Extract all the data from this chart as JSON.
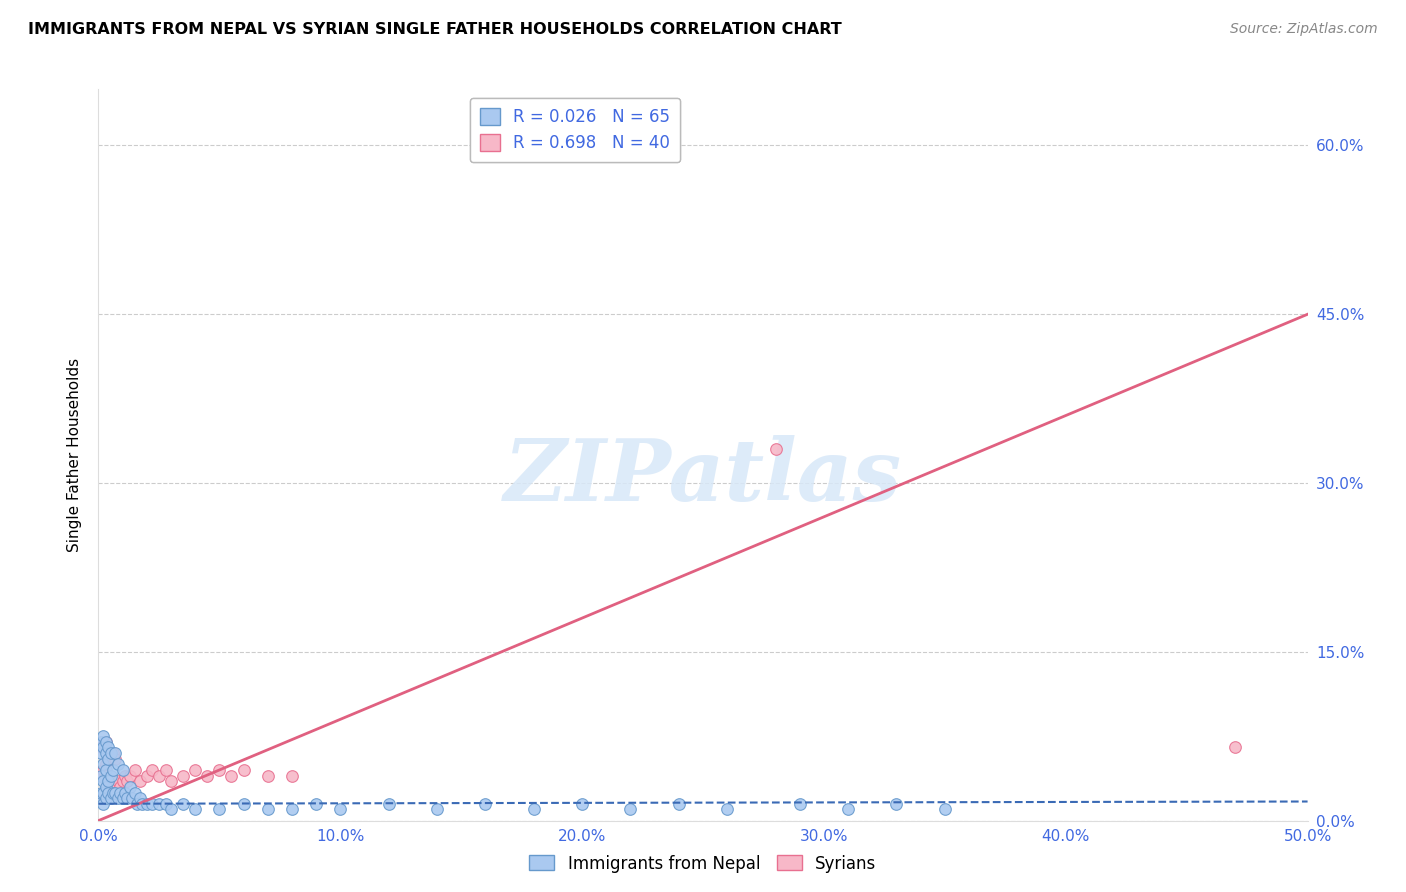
{
  "title": "IMMIGRANTS FROM NEPAL VS SYRIAN SINGLE FATHER HOUSEHOLDS CORRELATION CHART",
  "source": "Source: ZipAtlas.com",
  "ylabel": "Single Father Households",
  "xlim": [
    0.0,
    0.5
  ],
  "ylim": [
    0.0,
    0.65
  ],
  "xticks": [
    0.0,
    0.1,
    0.2,
    0.3,
    0.4,
    0.5
  ],
  "yticks": [
    0.0,
    0.15,
    0.3,
    0.45,
    0.6
  ],
  "ytick_labels_right": [
    "0.0%",
    "15.0%",
    "30.0%",
    "45.0%",
    "60.0%"
  ],
  "xtick_labels": [
    "0.0%",
    "10.0%",
    "20.0%",
    "30.0%",
    "40.0%",
    "50.0%"
  ],
  "nepal_color": "#aac9f0",
  "nepal_edge_color": "#6699cc",
  "syria_color": "#f7b8c8",
  "syria_edge_color": "#e87090",
  "nepal_trend_color": "#3a6ab5",
  "syria_trend_color": "#e06080",
  "nepal_trend_style": "--",
  "syria_trend_style": "-",
  "watermark_text": "ZIPatlas",
  "watermark_color": "#d8e8f8",
  "grid_color": "#cccccc",
  "background_color": "#ffffff",
  "tick_color": "#4169e1",
  "legend_nepal_label": "R = 0.026   N = 65",
  "legend_syria_label": "R = 0.698   N = 40",
  "bottom_legend_nepal": "Immigrants from Nepal",
  "bottom_legend_syria": "Syrians",
  "nepal_x": [
    0.001,
    0.001,
    0.001,
    0.001,
    0.001,
    0.002,
    0.002,
    0.002,
    0.002,
    0.002,
    0.002,
    0.003,
    0.003,
    0.003,
    0.003,
    0.003,
    0.004,
    0.004,
    0.004,
    0.004,
    0.005,
    0.005,
    0.005,
    0.006,
    0.006,
    0.007,
    0.007,
    0.008,
    0.008,
    0.009,
    0.01,
    0.01,
    0.011,
    0.012,
    0.013,
    0.014,
    0.015,
    0.016,
    0.017,
    0.018,
    0.02,
    0.022,
    0.025,
    0.028,
    0.03,
    0.035,
    0.04,
    0.05,
    0.06,
    0.07,
    0.08,
    0.09,
    0.1,
    0.12,
    0.14,
    0.16,
    0.18,
    0.2,
    0.22,
    0.24,
    0.26,
    0.29,
    0.31,
    0.33,
    0.35
  ],
  "nepal_y": [
    0.02,
    0.025,
    0.04,
    0.06,
    0.07,
    0.015,
    0.025,
    0.035,
    0.05,
    0.065,
    0.075,
    0.02,
    0.03,
    0.045,
    0.06,
    0.07,
    0.025,
    0.035,
    0.055,
    0.065,
    0.02,
    0.04,
    0.06,
    0.025,
    0.045,
    0.025,
    0.06,
    0.02,
    0.05,
    0.025,
    0.02,
    0.045,
    0.025,
    0.02,
    0.03,
    0.02,
    0.025,
    0.015,
    0.02,
    0.015,
    0.015,
    0.015,
    0.015,
    0.015,
    0.01,
    0.015,
    0.01,
    0.01,
    0.015,
    0.01,
    0.01,
    0.015,
    0.01,
    0.015,
    0.01,
    0.015,
    0.01,
    0.015,
    0.01,
    0.015,
    0.01,
    0.015,
    0.01,
    0.015,
    0.01
  ],
  "syria_x": [
    0.001,
    0.001,
    0.001,
    0.002,
    0.002,
    0.002,
    0.003,
    0.003,
    0.003,
    0.004,
    0.004,
    0.005,
    0.005,
    0.006,
    0.006,
    0.007,
    0.007,
    0.008,
    0.009,
    0.01,
    0.011,
    0.012,
    0.013,
    0.015,
    0.017,
    0.02,
    0.022,
    0.025,
    0.028,
    0.03,
    0.035,
    0.04,
    0.045,
    0.05,
    0.055,
    0.06,
    0.07,
    0.08,
    0.47,
    0.28
  ],
  "syria_y": [
    0.02,
    0.04,
    0.065,
    0.02,
    0.045,
    0.065,
    0.025,
    0.05,
    0.07,
    0.03,
    0.06,
    0.025,
    0.055,
    0.03,
    0.06,
    0.03,
    0.055,
    0.035,
    0.03,
    0.035,
    0.04,
    0.035,
    0.04,
    0.045,
    0.035,
    0.04,
    0.045,
    0.04,
    0.045,
    0.035,
    0.04,
    0.045,
    0.04,
    0.045,
    0.04,
    0.045,
    0.04,
    0.04,
    0.065,
    0.33
  ],
  "syria_trend_x": [
    0.0,
    0.5
  ],
  "syria_trend_y": [
    0.0,
    0.45
  ],
  "nepal_trend_x": [
    0.0,
    0.5
  ],
  "nepal_trend_y": [
    0.015,
    0.017
  ],
  "scatter_size": 70
}
